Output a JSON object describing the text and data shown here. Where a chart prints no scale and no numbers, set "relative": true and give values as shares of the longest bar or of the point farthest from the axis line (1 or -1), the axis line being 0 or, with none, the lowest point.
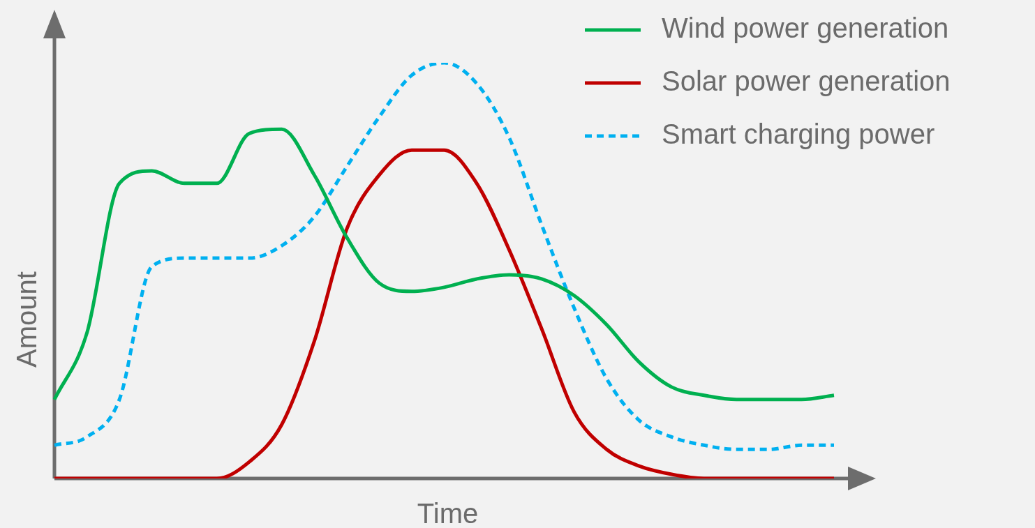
{
  "chart_data": {
    "type": "line",
    "xlabel": "Time",
    "ylabel": "Amount",
    "relative": true,
    "legend": "top right",
    "categories": [
      null,
      null,
      null,
      null,
      null,
      null,
      null,
      null,
      null,
      null,
      null,
      null,
      null,
      null,
      null,
      null,
      null,
      null,
      null,
      null,
      null,
      null,
      null,
      null,
      null
    ],
    "series": [
      {
        "name": "Wind power generation",
        "color": "#00b050",
        "line_style": "solid",
        "values": [
          0.19,
          0.35,
          0.71,
          0.74,
          0.71,
          0.71,
          0.83,
          0.84,
          0.73,
          0.58,
          0.47,
          0.45,
          0.46,
          0.48,
          0.49,
          0.48,
          0.44,
          0.37,
          0.28,
          0.22,
          0.2,
          0.19,
          0.19,
          0.19,
          0.2
        ]
      },
      {
        "name": "Solar power generation",
        "color": "#c00000",
        "line_style": "solid",
        "values": [
          0,
          0,
          0,
          0,
          0,
          0,
          0.04,
          0.13,
          0.33,
          0.6,
          0.73,
          0.79,
          0.79,
          0.71,
          0.55,
          0.36,
          0.16,
          0.07,
          0.03,
          0.01,
          0,
          0,
          0,
          0,
          0
        ]
      },
      {
        "name": "Smart charging power",
        "color": "#00b0f0",
        "line_style": "dashed",
        "values": [
          0.08,
          0.1,
          0.19,
          0.51,
          0.53,
          0.53,
          0.53,
          0.56,
          0.63,
          0.75,
          0.87,
          0.97,
          1,
          0.95,
          0.82,
          0.61,
          0.41,
          0.24,
          0.14,
          0.1,
          0.08,
          0.07,
          0.07,
          0.08,
          0.08
        ]
      }
    ]
  }
}
